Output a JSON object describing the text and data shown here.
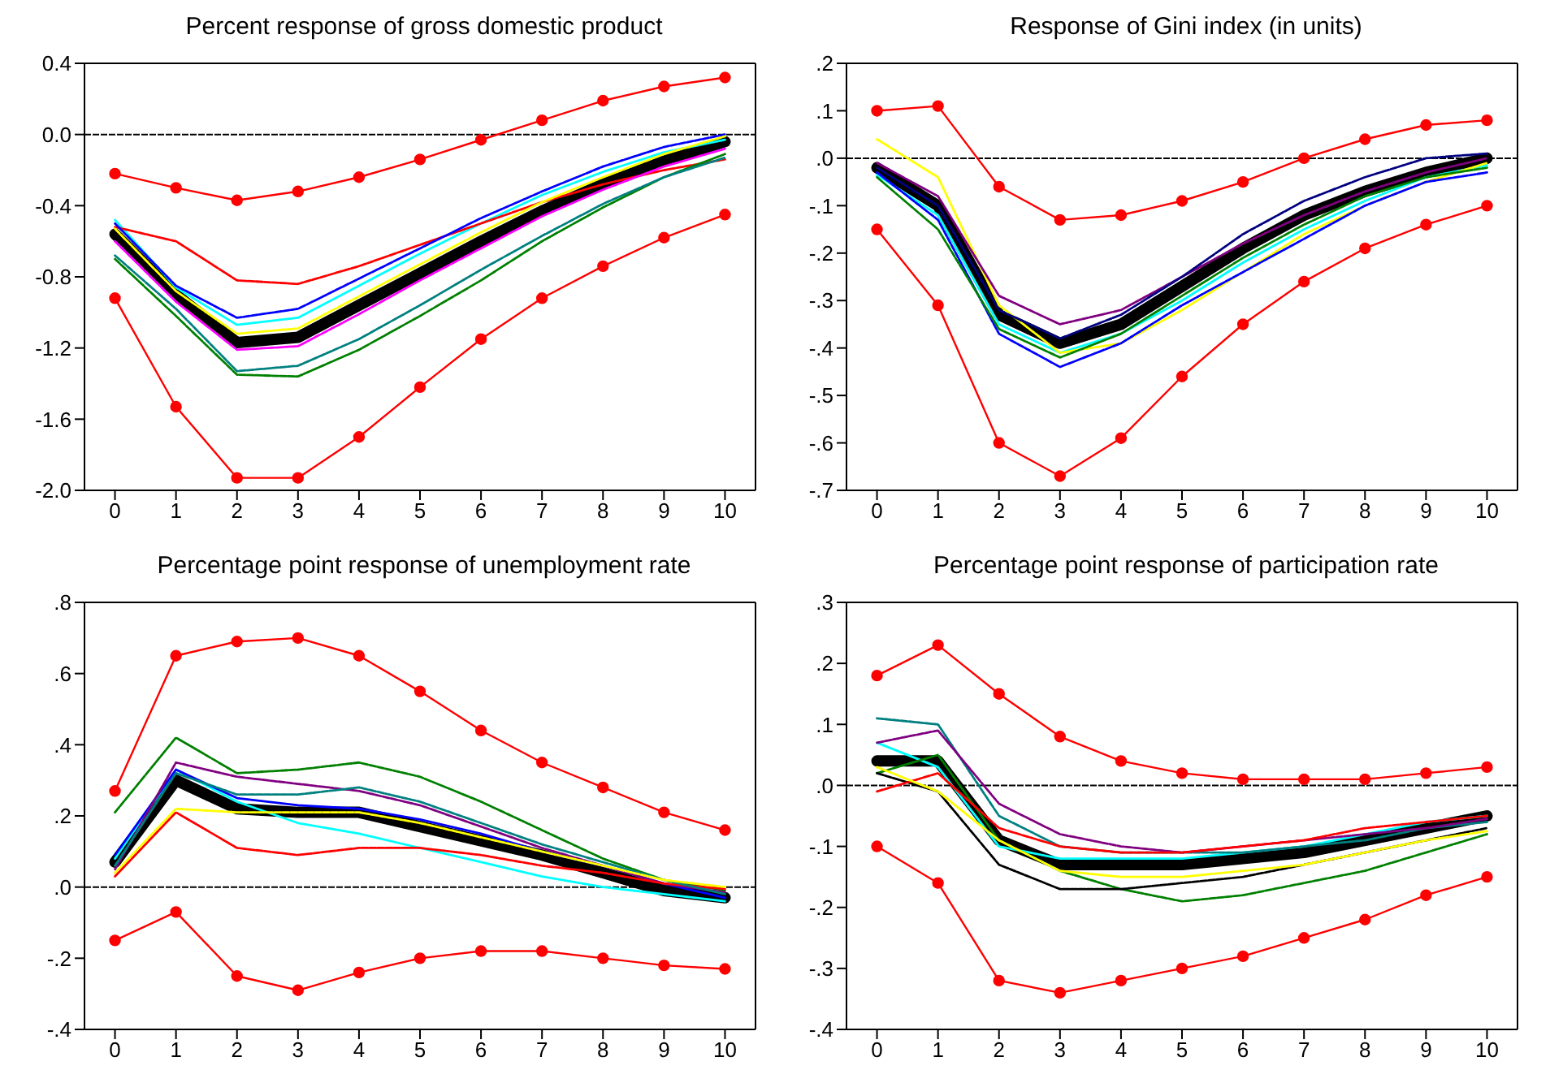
{
  "chart_data": [
    {
      "type": "line",
      "title": "Percent response of gross domestic product",
      "categories": [
        "0",
        "1",
        "2",
        "3",
        "4",
        "5",
        "6",
        "7",
        "8",
        "9",
        "10"
      ],
      "ylim": [
        -2.0,
        0.4
      ],
      "yticks": [
        {
          "value": -2,
          "label": "-2.0"
        },
        -1.6,
        -1.2,
        -0.8,
        -0.4,
        {
          "value": 0,
          "label": "0.0"
        },
        0.4
      ],
      "ref_lines": [
        {
          "axis": "y",
          "value": 0,
          "color": "#000000",
          "line_style": "dashed"
        }
      ],
      "series": [
        {
          "color": "#000000",
          "marker": "none",
          "line_style": "solid",
          "values": [
            -0.56,
            -0.9,
            -1.17,
            -1.14,
            -0.96,
            -0.78,
            -0.6,
            -0.43,
            -0.28,
            -0.15,
            -0.04
          ]
        },
        {
          "color": "#ff0000",
          "marker": "circle",
          "line_style": "solid",
          "values": [
            -0.22,
            -0.3,
            -0.37,
            -0.32,
            -0.24,
            -0.14,
            -0.03,
            0.08,
            0.19,
            0.27,
            0.32
          ]
        },
        {
          "color": "#ff0000",
          "marker": "circle",
          "line_style": "solid",
          "values": [
            -0.92,
            -1.53,
            -1.93,
            -1.93,
            -1.7,
            -1.42,
            -1.15,
            -0.92,
            -0.74,
            -0.58,
            -0.45
          ]
        },
        {
          "color": "#ff0000",
          "marker": "none",
          "line_style": "dashed",
          "values": [
            -0.52,
            -0.6,
            -0.82,
            -0.84,
            -0.74,
            -0.62,
            -0.5,
            -0.38,
            -0.28,
            -0.2,
            -0.14
          ]
        },
        {
          "color": "#008000",
          "marker": "none",
          "line_style": "dashed",
          "values": [
            -0.7,
            -1.02,
            -1.35,
            -1.36,
            -1.21,
            -1.02,
            -0.82,
            -0.6,
            -0.41,
            -0.24,
            -0.11
          ]
        },
        {
          "color": "#008080",
          "marker": "none",
          "line_style": "dashed",
          "values": [
            -0.68,
            -0.98,
            -1.33,
            -1.3,
            -1.15,
            -0.96,
            -0.76,
            -0.57,
            -0.39,
            -0.24,
            -0.13
          ]
        },
        {
          "color": "#0000ff",
          "marker": "none",
          "line_style": "dashed",
          "values": [
            -0.5,
            -0.85,
            -1.03,
            -0.98,
            -0.81,
            -0.64,
            -0.47,
            -0.32,
            -0.18,
            -0.07,
            0.0
          ]
        },
        {
          "color": "#00ffff",
          "marker": "none",
          "line_style": "solid",
          "values": [
            -0.48,
            -0.86,
            -1.07,
            -1.03,
            -0.85,
            -0.67,
            -0.5,
            -0.34,
            -0.21,
            -0.1,
            -0.03
          ]
        },
        {
          "color": "#ffff00",
          "marker": "none",
          "line_style": "dashed",
          "values": [
            -0.53,
            -0.88,
            -1.12,
            -1.09,
            -0.91,
            -0.73,
            -0.55,
            -0.38,
            -0.24,
            -0.11,
            -0.01
          ]
        },
        {
          "color": "#ff00ff",
          "marker": "none",
          "line_style": "dashed",
          "values": [
            -0.6,
            -0.94,
            -1.21,
            -1.19,
            -1.01,
            -0.82,
            -0.64,
            -0.46,
            -0.31,
            -0.18,
            -0.08
          ]
        }
      ]
    },
    {
      "type": "line",
      "title": "Response of Gini index (in units)",
      "categories": [
        "0",
        "1",
        "2",
        "3",
        "4",
        "5",
        "6",
        "7",
        "8",
        "9",
        "10"
      ],
      "ylim": [
        -0.7,
        0.2
      ],
      "yticks": [
        {
          "value": -0.7,
          "label": "-.7"
        },
        {
          "value": -0.6,
          "label": "-.6"
        },
        {
          "value": -0.5,
          "label": "-.5"
        },
        {
          "value": -0.4,
          "label": "-.4"
        },
        {
          "value": -0.3,
          "label": "-.3"
        },
        {
          "value": -0.2,
          "label": "-.2"
        },
        {
          "value": -0.1,
          "label": "-.1"
        },
        {
          "value": 0,
          "label": ".0"
        },
        {
          "value": 0.1,
          "label": ".1"
        },
        {
          "value": 0.2,
          "label": ".2"
        }
      ],
      "ref_lines": [
        {
          "axis": "y",
          "value": 0,
          "color": "#000000",
          "line_style": "dashed"
        }
      ],
      "series": [
        {
          "color": "#000000",
          "marker": "none",
          "line_style": "solid",
          "values": [
            -0.02,
            -0.1,
            -0.33,
            -0.39,
            -0.35,
            -0.27,
            -0.19,
            -0.12,
            -0.07,
            -0.03,
            0.0
          ]
        },
        {
          "color": "#ff0000",
          "marker": "circle",
          "line_style": "solid",
          "values": [
            0.1,
            0.11,
            -0.06,
            -0.13,
            -0.12,
            -0.09,
            -0.05,
            0.0,
            0.04,
            0.07,
            0.08
          ]
        },
        {
          "color": "#ff0000",
          "marker": "circle",
          "line_style": "solid",
          "values": [
            -0.15,
            -0.31,
            -0.6,
            -0.67,
            -0.59,
            -0.46,
            -0.35,
            -0.26,
            -0.19,
            -0.14,
            -0.1
          ]
        },
        {
          "color": "#ffff00",
          "marker": "none",
          "line_style": "dashed",
          "values": [
            0.04,
            -0.04,
            -0.31,
            -0.41,
            -0.39,
            -0.32,
            -0.24,
            -0.16,
            -0.1,
            -0.05,
            -0.01
          ]
        },
        {
          "color": "#0000ff",
          "marker": "none",
          "line_style": "dashed",
          "values": [
            -0.03,
            -0.13,
            -0.37,
            -0.44,
            -0.39,
            -0.31,
            -0.24,
            -0.17,
            -0.1,
            -0.05,
            -0.03
          ]
        },
        {
          "color": "#800080",
          "marker": "none",
          "line_style": "dashed",
          "values": [
            -0.01,
            -0.08,
            -0.29,
            -0.35,
            -0.32,
            -0.25,
            -0.18,
            -0.12,
            -0.07,
            -0.03,
            0.0
          ]
        },
        {
          "color": "#000080",
          "marker": "none",
          "line_style": "dashed",
          "values": [
            -0.02,
            -0.1,
            -0.32,
            -0.38,
            -0.33,
            -0.25,
            -0.16,
            -0.09,
            -0.04,
            0.0,
            0.01
          ]
        },
        {
          "color": "#008000",
          "marker": "none",
          "line_style": "dashed",
          "values": [
            -0.04,
            -0.15,
            -0.36,
            -0.42,
            -0.37,
            -0.29,
            -0.21,
            -0.14,
            -0.08,
            -0.04,
            -0.02
          ]
        },
        {
          "color": "#00ffff",
          "marker": "none",
          "line_style": "solid",
          "values": [
            -0.035,
            -0.12,
            -0.35,
            -0.41,
            -0.37,
            -0.3,
            -0.22,
            -0.15,
            -0.09,
            -0.04,
            -0.015
          ]
        }
      ]
    },
    {
      "type": "line",
      "title": "Percentage point response of unemployment rate",
      "categories": [
        "0",
        "1",
        "2",
        "3",
        "4",
        "5",
        "6",
        "7",
        "8",
        "9",
        "10"
      ],
      "ylim": [
        -0.4,
        0.8
      ],
      "yticks": [
        {
          "value": -0.4,
          "label": "-.4"
        },
        {
          "value": -0.2,
          "label": "-.2"
        },
        {
          "value": 0,
          "label": ".0"
        },
        {
          "value": 0.2,
          "label": ".2"
        },
        {
          "value": 0.4,
          "label": ".4"
        },
        {
          "value": 0.6,
          "label": ".6"
        },
        {
          "value": 0.8,
          "label": ".8"
        }
      ],
      "ref_lines": [
        {
          "axis": "y",
          "value": 0,
          "color": "#000000",
          "line_style": "dashed"
        }
      ],
      "series": [
        {
          "color": "#000000",
          "marker": "none",
          "line_style": "solid",
          "values": [
            0.07,
            0.3,
            0.22,
            0.21,
            0.21,
            0.17,
            0.13,
            0.09,
            0.04,
            -0.01,
            -0.03
          ]
        },
        {
          "color": "#ff0000",
          "marker": "circle",
          "line_style": "solid",
          "values": [
            0.27,
            0.65,
            0.69,
            0.7,
            0.65,
            0.55,
            0.44,
            0.35,
            0.28,
            0.21,
            0.16
          ]
        },
        {
          "color": "#ff0000",
          "marker": "circle",
          "line_style": "solid",
          "values": [
            -0.15,
            -0.07,
            -0.25,
            -0.29,
            -0.24,
            -0.2,
            -0.18,
            -0.18,
            -0.2,
            -0.22,
            -0.23
          ]
        },
        {
          "color": "#008000",
          "marker": "none",
          "line_style": "dashed",
          "values": [
            0.21,
            0.42,
            0.32,
            0.33,
            0.35,
            0.31,
            0.24,
            0.16,
            0.08,
            0.02,
            -0.01
          ]
        },
        {
          "color": "#800080",
          "marker": "none",
          "line_style": "dashed",
          "values": [
            0.05,
            0.35,
            0.31,
            0.29,
            0.27,
            0.23,
            0.17,
            0.11,
            0.06,
            0.01,
            -0.015
          ]
        },
        {
          "color": "#00ffff",
          "marker": "none",
          "line_style": "solid",
          "values": [
            0.08,
            0.33,
            0.24,
            0.18,
            0.15,
            0.11,
            0.07,
            0.03,
            0.0,
            -0.02,
            -0.04
          ]
        },
        {
          "color": "#ff0000",
          "marker": "none",
          "line_style": "dashed",
          "values": [
            0.03,
            0.21,
            0.11,
            0.09,
            0.11,
            0.11,
            0.09,
            0.06,
            0.04,
            0.01,
            -0.005
          ]
        },
        {
          "color": "#008080",
          "marker": "none",
          "line_style": "dashed",
          "values": [
            0.06,
            0.32,
            0.26,
            0.26,
            0.28,
            0.24,
            0.18,
            0.12,
            0.07,
            0.02,
            -0.02
          ]
        },
        {
          "color": "#0000ff",
          "marker": "none",
          "line_style": "solid",
          "values": [
            0.09,
            0.33,
            0.25,
            0.23,
            0.22,
            0.19,
            0.15,
            0.1,
            0.06,
            0.01,
            -0.03
          ]
        },
        {
          "color": "#ffff00",
          "marker": "none",
          "line_style": "dashed",
          "values": [
            0.04,
            0.22,
            0.21,
            0.21,
            0.21,
            0.18,
            0.14,
            0.1,
            0.06,
            0.02,
            0.0
          ]
        }
      ]
    },
    {
      "type": "line",
      "title": "Percentage point response of participation rate",
      "categories": [
        "0",
        "1",
        "2",
        "3",
        "4",
        "5",
        "6",
        "7",
        "8",
        "9",
        "10"
      ],
      "ylim": [
        -0.4,
        0.3
      ],
      "yticks": [
        {
          "value": -0.4,
          "label": "-.4"
        },
        {
          "value": -0.3,
          "label": "-.3"
        },
        {
          "value": -0.2,
          "label": "-.2"
        },
        {
          "value": -0.1,
          "label": "-.1"
        },
        {
          "value": 0,
          "label": ".0"
        },
        {
          "value": 0.1,
          "label": ".1"
        },
        {
          "value": 0.2,
          "label": ".2"
        },
        {
          "value": 0.3,
          "label": ".3"
        }
      ],
      "ref_lines": [
        {
          "axis": "y",
          "value": 0,
          "color": "#000000",
          "line_style": "dashed"
        }
      ],
      "series": [
        {
          "color": "#000000",
          "marker": "none",
          "line_style": "solid",
          "values": [
            0.04,
            0.04,
            -0.09,
            -0.13,
            -0.13,
            -0.13,
            -0.12,
            -0.11,
            -0.09,
            -0.07,
            -0.05
          ]
        },
        {
          "color": "#ff0000",
          "marker": "circle",
          "line_style": "solid",
          "values": [
            0.18,
            0.23,
            0.15,
            0.08,
            0.04,
            0.02,
            0.01,
            0.01,
            0.01,
            0.02,
            0.03
          ]
        },
        {
          "color": "#ff0000",
          "marker": "circle",
          "line_style": "solid",
          "values": [
            -0.1,
            -0.16,
            -0.32,
            -0.34,
            -0.32,
            -0.3,
            -0.28,
            -0.25,
            -0.22,
            -0.18,
            -0.15
          ]
        },
        {
          "color": "#008080",
          "marker": "none",
          "line_style": "dashed",
          "values": [
            0.11,
            0.1,
            -0.05,
            -0.1,
            -0.11,
            -0.11,
            -0.11,
            -0.1,
            -0.09,
            -0.07,
            -0.06
          ]
        },
        {
          "color": "#800080",
          "marker": "none",
          "line_style": "dashed",
          "values": [
            0.07,
            0.09,
            -0.03,
            -0.08,
            -0.1,
            -0.11,
            -0.1,
            -0.09,
            -0.08,
            -0.07,
            -0.055
          ]
        },
        {
          "color": "#008000",
          "marker": "none",
          "line_style": "dashed",
          "values": [
            0.02,
            0.05,
            -0.09,
            -0.14,
            -0.17,
            -0.19,
            -0.18,
            -0.16,
            -0.14,
            -0.11,
            -0.08
          ]
        },
        {
          "color": "#000000",
          "marker": "none",
          "line_style": "dashed",
          "values": [
            0.02,
            -0.01,
            -0.13,
            -0.17,
            -0.17,
            -0.16,
            -0.15,
            -0.13,
            -0.11,
            -0.09,
            -0.07
          ]
        },
        {
          "color": "#ff0000",
          "marker": "none",
          "line_style": "dashed",
          "values": [
            -0.01,
            0.02,
            -0.07,
            -0.1,
            -0.11,
            -0.11,
            -0.1,
            -0.09,
            -0.07,
            -0.06,
            -0.05
          ]
        },
        {
          "color": "#00ffff",
          "marker": "none",
          "line_style": "solid",
          "values": [
            0.07,
            0.03,
            -0.1,
            -0.12,
            -0.12,
            -0.12,
            -0.11,
            -0.1,
            -0.08,
            -0.06,
            -0.05
          ]
        },
        {
          "color": "#ffff00",
          "marker": "none",
          "line_style": "dashed",
          "values": [
            0.03,
            -0.01,
            -0.09,
            -0.14,
            -0.15,
            -0.15,
            -0.14,
            -0.13,
            -0.11,
            -0.09,
            -0.075
          ]
        }
      ]
    }
  ]
}
